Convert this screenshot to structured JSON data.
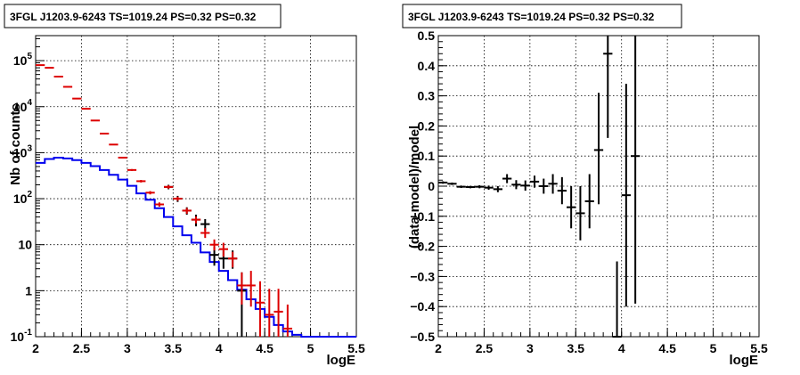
{
  "colors": {
    "data": "#000000",
    "model": "#0000ee",
    "counts": "#dd0000"
  },
  "chart_data": [
    {
      "type": "line",
      "title": "3FGL J1203.9-6243 TS=1019.24 PS=0.32 PS=0.32",
      "xlabel": "logE",
      "ylabel": "Nb of counts",
      "xlim": [
        2,
        5.5
      ],
      "ylim": [
        0.1,
        350000
      ],
      "yscale": "log",
      "grid": true,
      "xticks": [
        "2",
        "2.5",
        "3",
        "3.5",
        "4",
        "4.5",
        "5",
        "5.5"
      ],
      "yticks": [
        {
          "v": 0.1,
          "label": "10^-1"
        },
        {
          "v": 1,
          "label": "1"
        },
        {
          "v": 10,
          "label": "10"
        },
        {
          "v": 100,
          "label": "10^2"
        },
        {
          "v": 1000,
          "label": "10^3"
        },
        {
          "v": 10000,
          "label": "10^4"
        },
        {
          "v": 100000,
          "label": "10^5"
        }
      ],
      "bin_width": 0.1,
      "series": [
        {
          "style": "step",
          "color": "#0000ee",
          "x": [
            2.0,
            2.1,
            2.2,
            2.3,
            2.4,
            2.5,
            2.6,
            2.7,
            2.8,
            2.9,
            3.0,
            3.1,
            3.2,
            3.3,
            3.4,
            3.5,
            3.6,
            3.7,
            3.8,
            3.9,
            4.0,
            4.1,
            4.2,
            4.3,
            4.4,
            4.5,
            4.6,
            4.7,
            4.8,
            4.9,
            5.0,
            5.1,
            5.2,
            5.3,
            5.4
          ],
          "y": [
            600,
            730,
            780,
            750,
            690,
            600,
            510,
            420,
            330,
            260,
            190,
            130,
            95,
            62,
            40,
            25,
            16,
            11,
            6.8,
            4.2,
            2.7,
            1.7,
            1.05,
            0.65,
            0.4,
            0.27,
            0.18,
            0.13,
            0.11,
            0.1,
            0.1,
            0.1,
            0.1,
            0.1,
            0.1
          ]
        },
        {
          "style": "errorbar",
          "color": "#000000",
          "x": [
            3.45,
            3.55,
            3.65,
            3.75,
            3.85,
            3.95,
            4.05,
            4.15,
            4.25
          ],
          "y": [
            180,
            100,
            55,
            35,
            28,
            6,
            5,
            5,
            1
          ],
          "ylow": [
            160,
            85,
            45,
            25,
            20,
            3.5,
            3.0,
            3.0,
            0.1
          ],
          "yhigh": [
            200,
            115,
            65,
            45,
            36,
            9,
            7.5,
            7.5,
            2.5
          ]
        },
        {
          "style": "errorbar",
          "color": "#dd0000",
          "x": [
            2.05,
            2.15,
            2.25,
            2.35,
            2.45,
            2.55,
            2.65,
            2.75,
            2.85,
            2.95,
            3.05,
            3.15,
            3.25,
            3.35,
            3.45,
            3.55,
            3.65,
            3.75,
            3.85,
            3.95,
            4.05,
            4.15,
            4.25,
            4.35,
            4.45,
            4.55,
            4.65,
            4.75
          ],
          "y": [
            80000,
            70000,
            45000,
            27000,
            15000,
            9000,
            5000,
            2600,
            1500,
            780,
            420,
            240,
            135,
            75,
            180,
            100,
            55,
            35,
            18,
            10,
            8,
            5,
            1.3,
            1.3,
            0.55,
            0.3,
            0.35,
            0.15
          ],
          "ylow": [
            79000,
            69000,
            44500,
            26600,
            14800,
            8900,
            4920,
            2550,
            1460,
            750,
            400,
            225,
            124,
            67,
            165,
            90,
            47,
            29,
            14,
            7.5,
            5.5,
            3.2,
            0.5,
            0.45,
            0.1,
            0.1,
            0.1,
            0.1
          ],
          "yhigh": [
            81000,
            71000,
            45500,
            27400,
            15200,
            9100,
            5080,
            2650,
            1540,
            810,
            440,
            255,
            146,
            83,
            195,
            110,
            63,
            41,
            23,
            13,
            11,
            7,
            2.5,
            2.7,
            1.6,
            1.1,
            1.1,
            0.5
          ]
        }
      ]
    },
    {
      "type": "scatter",
      "title": "3FGL J1203.9-6243 TS=1019.24 PS=0.32 PS=0.32",
      "xlabel": "logE",
      "ylabel": "(data-model)/model",
      "xlim": [
        2,
        5.5
      ],
      "ylim": [
        -0.5,
        0.5
      ],
      "grid": true,
      "xticks": [
        "2",
        "2.5",
        "3",
        "3.5",
        "4",
        "4.5",
        "5",
        "5.5"
      ],
      "yticks": [
        "-0.5",
        "-0.4",
        "-0.3",
        "-0.2",
        "-0.1",
        "0",
        "0.1",
        "0.2",
        "0.3",
        "0.4",
        "0.5"
      ],
      "bin_width": 0.1,
      "series": [
        {
          "style": "errorbar",
          "color": "#000000",
          "x": [
            2.05,
            2.15,
            2.25,
            2.35,
            2.45,
            2.55,
            2.65,
            2.75,
            2.85,
            2.95,
            3.05,
            3.15,
            3.25,
            3.35,
            3.45,
            3.55,
            3.65,
            3.75,
            3.85,
            3.95,
            4.05,
            4.15
          ],
          "y": [
            0.012,
            0.008,
            -0.002,
            -0.003,
            -0.002,
            -0.005,
            -0.01,
            0.025,
            0.005,
            0.002,
            0.015,
            0.0,
            0.008,
            -0.015,
            -0.07,
            -0.09,
            -0.05,
            0.12,
            0.44,
            -0.5,
            -0.03,
            0.1
          ],
          "ylow": [
            0.008,
            0.004,
            -0.006,
            -0.007,
            -0.007,
            -0.012,
            -0.02,
            0.01,
            -0.01,
            -0.015,
            -0.005,
            -0.025,
            -0.025,
            -0.06,
            -0.14,
            -0.18,
            -0.14,
            -0.06,
            0.16,
            -0.5,
            -0.4,
            -0.39
          ],
          "yhigh": [
            0.016,
            0.012,
            0.002,
            0.001,
            0.003,
            0.002,
            0.0,
            0.04,
            0.02,
            0.019,
            0.035,
            0.025,
            0.04,
            0.03,
            0.0,
            0.0,
            0.04,
            0.31,
            0.5,
            -0.25,
            0.34,
            0.5
          ]
        }
      ]
    }
  ]
}
